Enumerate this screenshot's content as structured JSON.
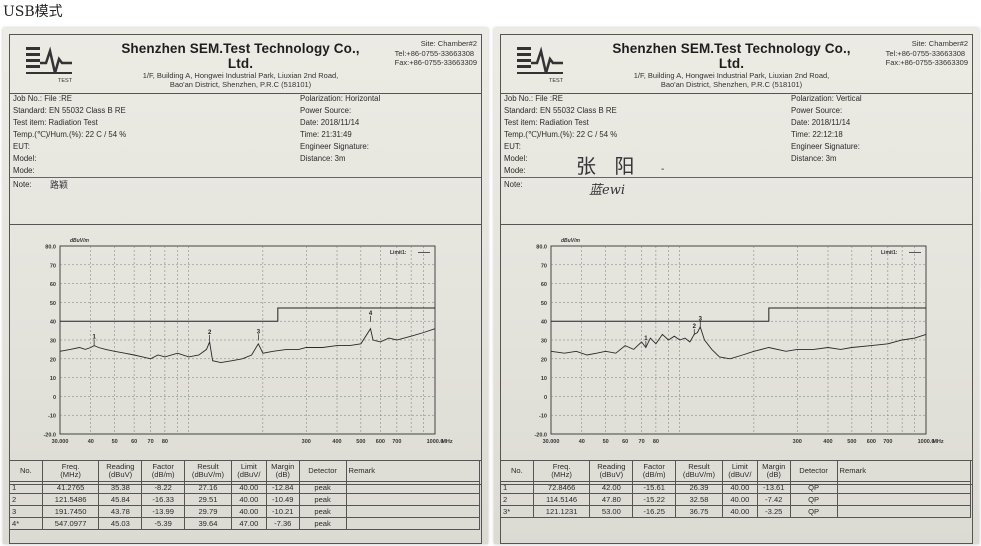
{
  "caption": "USB模式",
  "sheets": [
    {
      "company": "Shenzhen SEM.Test Technology Co., Ltd.",
      "address1": "1/F, Building A, Hongwei Industrial Park, Liuxian 2nd Road,",
      "address2": "Bao'an District, Shenzhen, P.R.C (518101)",
      "site": "Site:  Chamber#2",
      "tel": "Tel:+86-0755-33663308",
      "fax": "Fax:+86-0755-33663309",
      "logo_text": "TEST",
      "job_no": "Job No.:  File :RE",
      "standard": "Standard:  EN 55032 Class B RE",
      "test_item": "Test item:  Radiation Test",
      "temp": "Temp.(℃)/Hum.(%):  22  C / 54 %",
      "eut": "EUT:",
      "model": "Model:",
      "mode": "Mode:",
      "note": "Note:",
      "note_hand": "路颖",
      "polarization": "Polarization:   Horizontal",
      "power": "Power Source:",
      "date": "Date: 2018/11/14",
      "time": "Time: 21:31:49",
      "engineer": "Engineer Signature:",
      "distance": "Distance:   3m",
      "signature_hand": "",
      "signature_hand2": "",
      "table": {
        "headers": [
          "No.",
          "Freq.\n(MHz)",
          "Reading\n(dBuV)",
          "Factor\n(dB/m)",
          "Result\n(dBuV/m)",
          "Limit\n(dBuV/",
          "Margin\n(dB)",
          "Detector",
          "Remark"
        ],
        "rows": [
          [
            "1",
            "41.2765",
            "35.38",
            "-8.22",
            "27.16",
            "40.00",
            "-12.84",
            "peak",
            ""
          ],
          [
            "2",
            "121.5486",
            "45.84",
            "-16.33",
            "29.51",
            "40.00",
            "-10.49",
            "peak",
            ""
          ],
          [
            "3",
            "191.7450",
            "43.78",
            "-13.99",
            "29.79",
            "40.00",
            "-10.21",
            "peak",
            ""
          ],
          [
            "4*",
            "547.0977",
            "45.03",
            "-5.39",
            "39.64",
            "47.00",
            "-7.36",
            "peak",
            ""
          ]
        ]
      }
    },
    {
      "company": "Shenzhen SEM.Test Technology Co., Ltd.",
      "address1": "1/F, Building A, Hongwei Industrial Park, Liuxian 2nd Road,",
      "address2": "Bao'an District, Shenzhen, P.R.C (518101)",
      "site": "Site:  Chamber#2",
      "tel": "Tel:+86-0755-33663308",
      "fax": "Fax:+86-0755-33663309",
      "logo_text": "TEST",
      "job_no": "Job No.:  File :RE",
      "standard": "Standard:  EN 55032 Class B RE",
      "test_item": "Test item:   Radiation Test",
      "temp": "Temp.(℃)/Hum.(%):  22  C / 54 %",
      "eut": "EUT:",
      "model": "Model:",
      "mode": "Mode:",
      "note": "Note:",
      "note_hand": "",
      "polarization": "Polarization:   Vertical",
      "power": "Power Source:",
      "date": "Date: 2018/11/14",
      "time": "Time: 22:12:18",
      "engineer": "Engineer Signature:",
      "distance": "Distance:   3m",
      "signature_hand": "张 阳",
      "signature_hand2": "蓝ewi",
      "table": {
        "headers": [
          "No.",
          "Freq.\n(MHz)",
          "Reading\n(dBuV)",
          "Factor\n(dB/m)",
          "Result\n(dBuV/m)",
          "Limit\n(dBuV/",
          "Margin\n(dB)",
          "Detector",
          "Remark"
        ],
        "rows": [
          [
            "1",
            "72.8466",
            "42.00",
            "-15.61",
            "26.39",
            "40.00",
            "-13.61",
            "QP",
            ""
          ],
          [
            "2",
            "114.5146",
            "47.80",
            "-15.22",
            "32.58",
            "40.00",
            "-7.42",
            "QP",
            ""
          ],
          [
            "3*",
            "121.1231",
            "53.00",
            "-16.25",
            "36.75",
            "40.00",
            "-3.25",
            "QP",
            ""
          ]
        ]
      }
    }
  ],
  "chart_data": [
    {
      "type": "line",
      "title": "",
      "ylabel": "dBuV/m",
      "xscale": "log",
      "xlim": [
        30,
        1000
      ],
      "ylim": [
        -20,
        80
      ],
      "yticks": [
        "80.0",
        "70",
        "60",
        "50",
        "40",
        "30",
        "20",
        "10",
        "0",
        "-10",
        "-20.0"
      ],
      "xticks": [
        "30.000",
        "40",
        "50",
        "60",
        "70",
        "80",
        "300",
        "400",
        "500",
        "600",
        "700",
        "1000.0",
        "MHz"
      ],
      "legend": "Limit1:",
      "grid": true,
      "limit": {
        "x": [
          30,
          230,
          230,
          1000
        ],
        "y": [
          40,
          40,
          47,
          47
        ]
      },
      "series": [
        {
          "x": [
            30,
            33,
            36,
            38,
            40,
            41.3,
            43,
            46,
            50,
            55,
            60,
            65,
            70,
            75,
            80,
            90,
            100,
            110,
            118,
            121.5,
            125,
            135,
            150,
            165,
            180,
            191.7,
            200,
            220,
            250,
            280,
            300,
            350,
            400,
            450,
            500,
            547,
            560,
            600,
            650,
            700,
            800,
            900,
            1000
          ],
          "y": [
            24,
            25,
            26,
            25,
            26,
            27,
            26,
            25,
            24,
            23,
            22,
            21,
            20,
            22,
            21,
            23,
            21,
            22,
            25,
            29,
            19,
            18,
            19,
            20,
            22,
            28,
            23,
            24,
            25,
            25,
            26,
            26,
            27,
            27,
            28,
            36,
            30,
            29,
            31,
            30,
            32,
            34,
            36
          ]
        }
      ],
      "markers": [
        {
          "label": "1",
          "x": 41.2765,
          "y": 27.16
        },
        {
          "label": "2",
          "x": 121.5486,
          "y": 29.51
        },
        {
          "label": "3",
          "x": 191.745,
          "y": 29.79
        },
        {
          "label": "4",
          "x": 547.0977,
          "y": 39.64
        }
      ]
    },
    {
      "type": "line",
      "title": "",
      "ylabel": "dBuV/m",
      "xscale": "log",
      "xlim": [
        30,
        1000
      ],
      "ylim": [
        -20,
        80
      ],
      "yticks": [
        "80.0",
        "70",
        "60",
        "50",
        "40",
        "30",
        "20",
        "10",
        "0",
        "-10",
        "-20.0"
      ],
      "xticks": [
        "30.000",
        "40",
        "50",
        "60",
        "70",
        "80",
        "300",
        "400",
        "500",
        "600",
        "700",
        "1000.0",
        "MHz"
      ],
      "legend": "Limit1:",
      "grid": true,
      "limit": {
        "x": [
          30,
          230,
          230,
          1000
        ],
        "y": [
          40,
          40,
          47,
          47
        ]
      },
      "series": [
        {
          "x": [
            30,
            34,
            38,
            42,
            46,
            50,
            55,
            60,
            65,
            70,
            72.8,
            76,
            80,
            85,
            90,
            95,
            100,
            105,
            110,
            114.5,
            118,
            121.1,
            126,
            135,
            145,
            160,
            180,
            200,
            230,
            270,
            300,
            350,
            400,
            450,
            500,
            600,
            700,
            800,
            900,
            1000
          ],
          "y": [
            24,
            23,
            24,
            22,
            23,
            24,
            23,
            27,
            25,
            29,
            26,
            31,
            28,
            33,
            30,
            32,
            30,
            31,
            29,
            33,
            34,
            37,
            30,
            25,
            21,
            20,
            22,
            24,
            26,
            24,
            25,
            25,
            26,
            25,
            26,
            27,
            28,
            30,
            31,
            33
          ]
        }
      ],
      "markers": [
        {
          "label": "1",
          "x": 72.8466,
          "y": 26.39
        },
        {
          "label": "2",
          "x": 114.5146,
          "y": 32.58
        },
        {
          "label": "3",
          "x": 121.1231,
          "y": 36.75
        }
      ]
    }
  ]
}
